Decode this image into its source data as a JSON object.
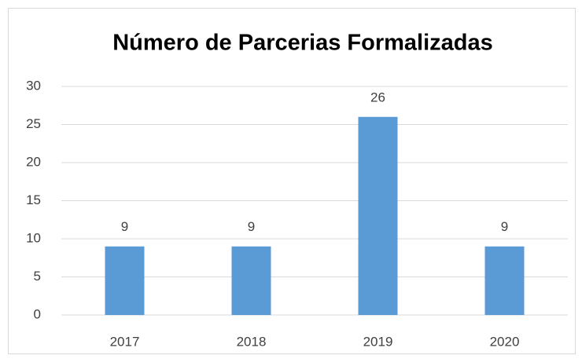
{
  "chart_data": {
    "type": "bar",
    "title": "Número de Parcerias Formalizadas",
    "categories": [
      "2017",
      "2018",
      "2019",
      "2020"
    ],
    "values": [
      9,
      9,
      26,
      9
    ],
    "color": "#5b9bd5",
    "ylim": [
      0,
      30
    ],
    "yticks": [
      0,
      5,
      10,
      15,
      20,
      25,
      30
    ],
    "grid": true,
    "data_labels": true
  }
}
